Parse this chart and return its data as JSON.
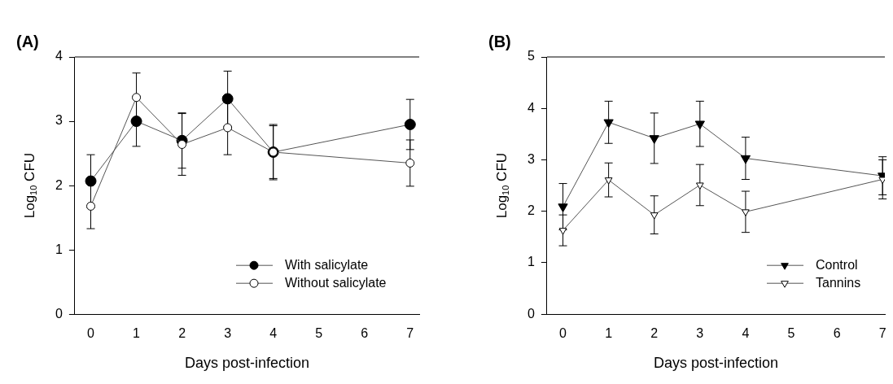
{
  "chart_data": [
    {
      "type": "line",
      "title": "(A)",
      "xlabel": "Days post-infection",
      "ylabel": "Log$_{10}$ CFU",
      "x": [
        0,
        1,
        2,
        3,
        4,
        7
      ],
      "xlim": [
        -0.35,
        7.2
      ],
      "xticks": [
        0,
        1,
        2,
        3,
        4,
        5,
        6,
        7
      ],
      "ylim": [
        0,
        4
      ],
      "yticks": [
        0,
        1,
        2,
        3,
        4
      ],
      "grid": false,
      "legend": "bottom right",
      "marker": "circle",
      "series": [
        {
          "name": "With salicylate",
          "color": "#000000",
          "values": [
            2.07,
            3.0,
            2.7,
            3.35,
            2.52,
            2.95
          ],
          "errors": [
            0.41,
            0.39,
            0.43,
            0.43,
            0.43,
            0.39
          ]
        },
        {
          "name": "Without salicylate",
          "color": "#ffffff",
          "values": [
            1.68,
            3.37,
            2.64,
            2.9,
            2.52,
            2.35
          ],
          "errors": [
            0.35,
            0.38,
            0.48,
            0.42,
            0.41,
            0.36
          ]
        }
      ]
    },
    {
      "type": "line",
      "title": "(B)",
      "xlabel": "Days post-infection",
      "ylabel": "Log$_{10}$ CFU",
      "x": [
        0,
        1,
        2,
        3,
        4,
        7
      ],
      "xlim": [
        -0.35,
        7.05
      ],
      "xticks": [
        0,
        1,
        2,
        3,
        4,
        5,
        6,
        7
      ],
      "ylim": [
        0,
        5
      ],
      "yticks": [
        0,
        1,
        2,
        3,
        4,
        5
      ],
      "grid": false,
      "legend": "bottom right",
      "marker": "triangle",
      "series": [
        {
          "name": "Control",
          "color": "#000000",
          "values": [
            2.09,
            3.73,
            3.42,
            3.7,
            3.03,
            2.69
          ],
          "errors": [
            0.45,
            0.41,
            0.49,
            0.44,
            0.41,
            0.37
          ]
        },
        {
          "name": "Tannins",
          "color": "#ffffff",
          "values": [
            1.63,
            2.61,
            1.93,
            2.51,
            1.99,
            2.62
          ],
          "errors": [
            0.3,
            0.33,
            0.37,
            0.4,
            0.4,
            0.38
          ]
        }
      ]
    }
  ]
}
